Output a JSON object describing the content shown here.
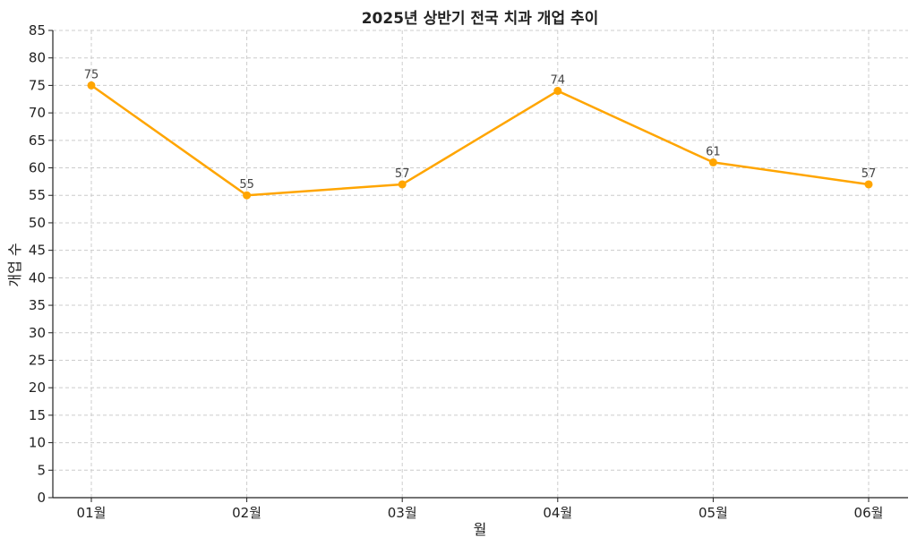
{
  "chart_data": {
    "type": "line",
    "title": "2025년 상반기 전국 치과 개업 추이",
    "xlabel": "월",
    "ylabel": "개업 수",
    "categories": [
      "01월",
      "02월",
      "03월",
      "04월",
      "05월",
      "06월"
    ],
    "series": [
      {
        "values": [
          75,
          55,
          57,
          74,
          61,
          57
        ],
        "color": "#FFA500"
      }
    ],
    "ylim": [
      0,
      85
    ],
    "yticks": [
      0,
      5,
      10,
      15,
      20,
      25,
      30,
      35,
      40,
      45,
      50,
      55,
      60,
      65,
      70,
      75,
      80,
      85
    ],
    "grid": true,
    "data_labels": true
  }
}
